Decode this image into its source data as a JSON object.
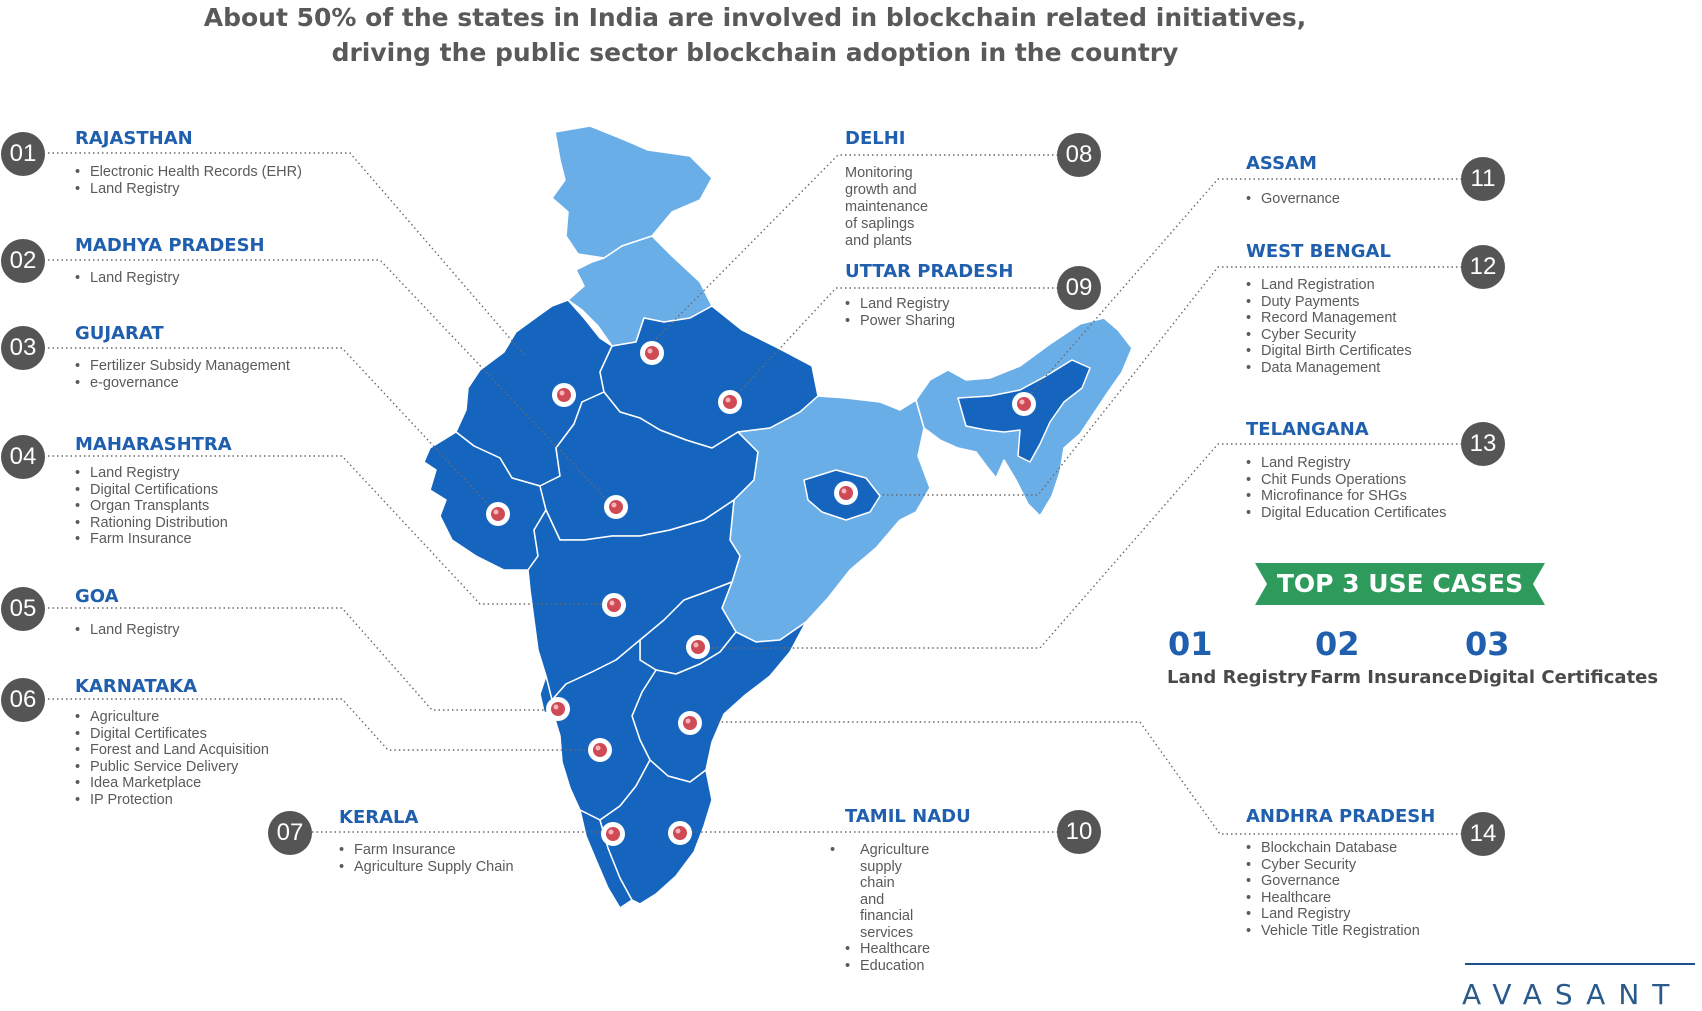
{
  "title": {
    "line1": "About 50% of the states in India are involved in blockchain related initiatives,",
    "line2": "driving the public sector blockchain adoption in the country"
  },
  "colors": {
    "accent": "#1f5fad",
    "map_dark": "#1565bf",
    "map_light": "#6aaee8",
    "badge": "#555555",
    "banner": "#2e9b5c"
  },
  "states": [
    {
      "num": "01",
      "name": "RAJASTHAN",
      "items": [
        "Electronic Health Records (EHR)",
        "Land Registry"
      ]
    },
    {
      "num": "02",
      "name": "MADHYA PRADESH",
      "items": [
        "Land Registry"
      ]
    },
    {
      "num": "03",
      "name": "GUJARAT",
      "items": [
        "Fertilizer Subsidy Management",
        "e-governance"
      ]
    },
    {
      "num": "04",
      "name": "MAHARASHTRA",
      "items": [
        "Land Registry",
        "Digital Certifications",
        "Organ Transplants",
        "Rationing Distribution",
        "Farm Insurance"
      ]
    },
    {
      "num": "05",
      "name": "GOA",
      "items": [
        "Land Registry"
      ]
    },
    {
      "num": "06",
      "name": "KARNATAKA",
      "items": [
        "Agriculture",
        "Digital Certificates",
        "Forest and Land Acquisition",
        "Public Service Delivery",
        "Idea Marketplace",
        "IP Protection"
      ]
    },
    {
      "num": "07",
      "name": "KERALA",
      "items": [
        "Farm Insurance",
        "Agriculture Supply Chain"
      ]
    },
    {
      "num": "08",
      "name": "DELHI",
      "description": "Monitoring growth and\nmaintenance of saplings\nand plants"
    },
    {
      "num": "09",
      "name": "UTTAR PRADESH",
      "items": [
        "Land Registry",
        "Power Sharing"
      ]
    },
    {
      "num": "10",
      "name": "TAMIL NADU",
      "items": [
        "Agriculture supply chain\nand financial services",
        "Healthcare",
        "Education"
      ]
    },
    {
      "num": "11",
      "name": "ASSAM",
      "items": [
        "Governance"
      ]
    },
    {
      "num": "12",
      "name": "WEST BENGAL",
      "items": [
        "Land Registration",
        "Duty Payments",
        "Record Management",
        "Cyber Security",
        "Digital Birth Certificates",
        "Data Management"
      ]
    },
    {
      "num": "13",
      "name": "TELANGANA",
      "items": [
        "Land Registry",
        "Chit Funds Operations",
        "Microfinance for SHGs",
        "Digital Education Certificates"
      ]
    },
    {
      "num": "14",
      "name": "ANDHRA PRADESH",
      "items": [
        "Blockchain Database",
        "Cyber Security",
        "Governance",
        "Healthcare",
        "Land Registry",
        "Vehicle Title Registration"
      ]
    }
  ],
  "top_use_cases": {
    "banner": "TOP 3 USE CASES",
    "items": [
      {
        "num": "01",
        "label": "Land Registry"
      },
      {
        "num": "02",
        "label": "Farm Insurance"
      },
      {
        "num": "03",
        "label": "Digital Certificates"
      }
    ]
  },
  "logo": "AVASANT"
}
